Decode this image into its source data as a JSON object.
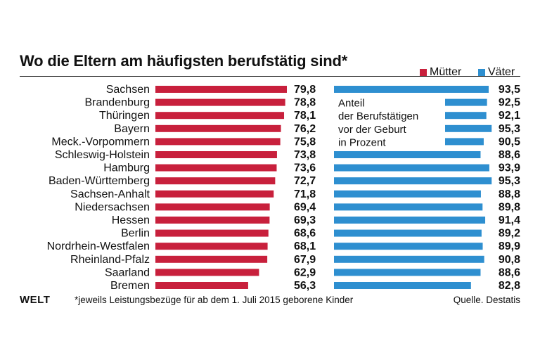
{
  "chart_data": {
    "type": "bar",
    "title": "Wo die Eltern am häufigsten berufstätig sind*",
    "categories": [
      "Sachsen",
      "Brandenburg",
      "Thüringen",
      "Bayern",
      "Meck.-Vorpommern",
      "Schleswig-Holstein",
      "Hamburg",
      "Baden-Württemberg",
      "Sachsen-Anhalt",
      "Niedersachsen",
      "Hessen",
      "Berlin",
      "Nordrhein-Westfalen",
      "Rheinland-Pfalz",
      "Saarland",
      "Bremen"
    ],
    "series": [
      {
        "name": "Mütter",
        "color": "#c8203c",
        "values": [
          79.8,
          78.8,
          78.1,
          76.2,
          75.8,
          73.8,
          73.6,
          72.7,
          71.8,
          69.4,
          69.3,
          68.6,
          68.1,
          67.9,
          62.9,
          56.3
        ]
      },
      {
        "name": "Väter",
        "color": "#2e8fd0",
        "values": [
          93.5,
          92.5,
          92.1,
          95.3,
          90.5,
          88.6,
          93.9,
          95.3,
          88.8,
          89.8,
          91.4,
          89.2,
          89.9,
          90.8,
          88.6,
          82.8
        ]
      }
    ],
    "annotation": [
      "Anteil",
      "der Berufstätigen",
      "vor der Geburt",
      "in Prozent"
    ],
    "xlim": [
      0,
      100
    ],
    "legend": "top-right",
    "footnote": "*jeweils Leistungsbezüge für ab dem 1. Juli 2015 geborene Kinder",
    "source": "Quelle. Destatis",
    "logo": "WELT"
  }
}
